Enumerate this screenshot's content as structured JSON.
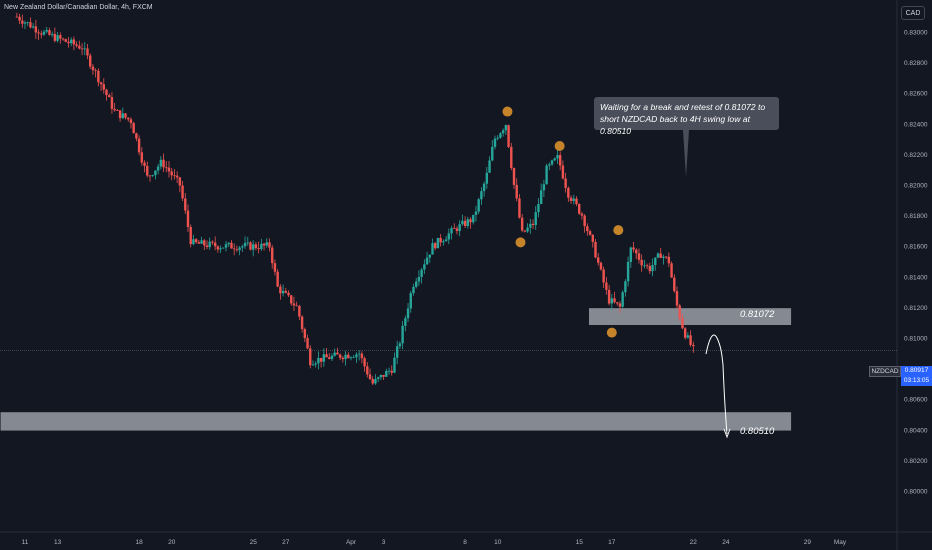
{
  "chart_data": {
    "type": "candlestick",
    "title": "New Zealand Dollar/Canadian Dollar, 4h, FXCM",
    "currency": "CAD",
    "symbol": "NZDCAD",
    "last_price": "0.80917",
    "countdown": "03:13:05",
    "ylim": [
      0.799,
      0.8305
    ],
    "y_ticks": [
      "0.83000",
      "0.82800",
      "0.82600",
      "0.82400",
      "0.82200",
      "0.82000",
      "0.81800",
      "0.81600",
      "0.81400",
      "0.81200",
      "0.81000",
      "0.80800",
      "0.80600",
      "0.80400",
      "0.80200",
      "0.80000"
    ],
    "x_ticks": [
      {
        "label": "11",
        "day": -20
      },
      {
        "label": "13",
        "day": -18
      },
      {
        "label": "18",
        "day": -13
      },
      {
        "label": "20",
        "day": -11
      },
      {
        "label": "25",
        "day": -6
      },
      {
        "label": "27",
        "day": -4
      },
      {
        "label": "Apr",
        "day": 0
      },
      {
        "label": "3",
        "day": 2
      },
      {
        "label": "8",
        "day": 7
      },
      {
        "label": "10",
        "day": 9
      },
      {
        "label": "15",
        "day": 14
      },
      {
        "label": "17",
        "day": 16
      },
      {
        "label": "22",
        "day": 21
      },
      {
        "label": "24",
        "day": 23
      },
      {
        "label": "29",
        "day": 28
      },
      {
        "label": "May",
        "day": 30
      }
    ],
    "price_path": [
      {
        "day": -20.5,
        "price": 0.831
      },
      {
        "day": -19.0,
        "price": 0.83
      },
      {
        "day": -17.8,
        "price": 0.8295
      },
      {
        "day": -16.5,
        "price": 0.829
      },
      {
        "day": -15.6,
        "price": 0.8272
      },
      {
        "day": -14.5,
        "price": 0.8248
      },
      {
        "day": -13.5,
        "price": 0.8242
      },
      {
        "day": -12.5,
        "price": 0.8205
      },
      {
        "day": -11.6,
        "price": 0.8215
      },
      {
        "day": -10.5,
        "price": 0.82
      },
      {
        "day": -9.8,
        "price": 0.8162
      },
      {
        "day": -8.0,
        "price": 0.816
      },
      {
        "day": -6.5,
        "price": 0.816
      },
      {
        "day": -5.0,
        "price": 0.816
      },
      {
        "day": -4.5,
        "price": 0.8133
      },
      {
        "day": -3.3,
        "price": 0.812
      },
      {
        "day": -2.5,
        "price": 0.8085
      },
      {
        "day": -1.0,
        "price": 0.8088
      },
      {
        "day": 0.5,
        "price": 0.809
      },
      {
        "day": 1.3,
        "price": 0.807
      },
      {
        "day": 2.5,
        "price": 0.808
      },
      {
        "day": 3.0,
        "price": 0.8098
      },
      {
        "day": 3.8,
        "price": 0.8135
      },
      {
        "day": 5.0,
        "price": 0.816
      },
      {
        "day": 6.5,
        "price": 0.8172
      },
      {
        "day": 7.5,
        "price": 0.8178
      },
      {
        "day": 8.3,
        "price": 0.8205
      },
      {
        "day": 8.8,
        "price": 0.823
      },
      {
        "day": 9.5,
        "price": 0.824
      },
      {
        "day": 10.0,
        "price": 0.82
      },
      {
        "day": 10.5,
        "price": 0.8168
      },
      {
        "day": 11.2,
        "price": 0.8175
      },
      {
        "day": 12.0,
        "price": 0.821
      },
      {
        "day": 12.7,
        "price": 0.8218
      },
      {
        "day": 13.3,
        "price": 0.8195
      },
      {
        "day": 14.2,
        "price": 0.818
      },
      {
        "day": 15.0,
        "price": 0.8155
      },
      {
        "day": 15.8,
        "price": 0.8125
      },
      {
        "day": 16.5,
        "price": 0.812
      },
      {
        "day": 17.2,
        "price": 0.816
      },
      {
        "day": 17.8,
        "price": 0.815
      },
      {
        "day": 18.3,
        "price": 0.8145
      },
      {
        "day": 19.0,
        "price": 0.8155
      },
      {
        "day": 19.5,
        "price": 0.815
      },
      {
        "day": 19.9,
        "price": 0.8125
      },
      {
        "day": 20.4,
        "price": 0.8105
      },
      {
        "day": 21.0,
        "price": 0.8092
      }
    ],
    "markers": [
      {
        "name": "swing-high-1",
        "day": 9.6,
        "price": 0.8248
      },
      {
        "name": "swing-high-2",
        "day": 12.8,
        "price": 0.82255
      },
      {
        "name": "swing-high-3",
        "day": 16.4,
        "price": 0.81705
      },
      {
        "name": "swing-low-1",
        "day": 10.4,
        "price": 0.81625
      },
      {
        "name": "swing-low-2",
        "day": 16.0,
        "price": 0.81035
      }
    ],
    "zones": [
      {
        "name": "retest-zone",
        "label": "0.81072",
        "day_start": 14.6,
        "day_end": 27.0,
        "price_top": 0.81195,
        "price_bottom": 0.81085
      },
      {
        "name": "target-zone",
        "label": "0.80510",
        "day_start": -21.5,
        "day_end": 27.0,
        "price_top": 0.80515,
        "price_bottom": 0.80395
      }
    ],
    "annotation": "Waiting for a break and retest of 0.81072 to short NZDCAD back to 4H swing low at 0.80510"
  }
}
